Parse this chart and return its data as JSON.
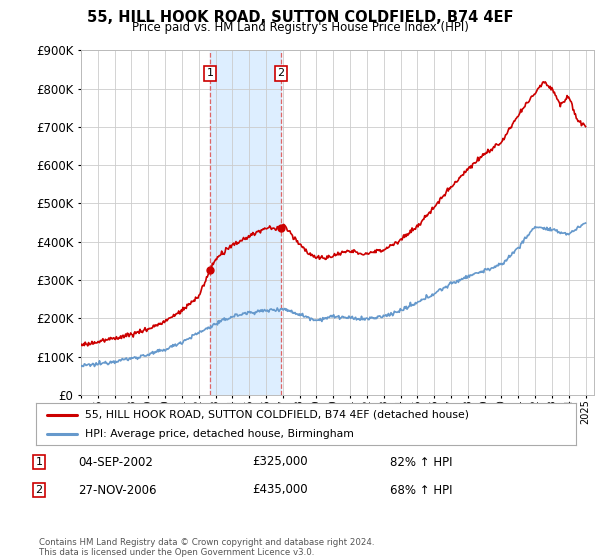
{
  "title": "55, HILL HOOK ROAD, SUTTON COLDFIELD, B74 4EF",
  "subtitle": "Price paid vs. HM Land Registry's House Price Index (HPI)",
  "background_color": "#ffffff",
  "grid_color": "#cccccc",
  "sale1_date": "04-SEP-2002",
  "sale1_price": 325000,
  "sale1_hpi": "82% ↑ HPI",
  "sale2_date": "27-NOV-2006",
  "sale2_price": 435000,
  "sale2_hpi": "68% ↑ HPI",
  "legend_label_red": "55, HILL HOOK ROAD, SUTTON COLDFIELD, B74 4EF (detached house)",
  "legend_label_blue": "HPI: Average price, detached house, Birmingham",
  "footnote": "Contains HM Land Registry data © Crown copyright and database right 2024.\nThis data is licensed under the Open Government Licence v3.0.",
  "red_color": "#cc0000",
  "blue_color": "#6699cc",
  "shade_color": "#ddeeff",
  "sale1_vline_x": 2002.67,
  "sale2_vline_x": 2006.9,
  "ylim_max": 900000,
  "xlim_start": 1995.0,
  "xlim_end": 2025.5,
  "hpi_data": [
    [
      1995.0,
      75000
    ],
    [
      1996.0,
      80000
    ],
    [
      1997.0,
      88000
    ],
    [
      1998.0,
      95000
    ],
    [
      1999.0,
      105000
    ],
    [
      2000.0,
      118000
    ],
    [
      2001.0,
      138000
    ],
    [
      2002.0,
      162000
    ],
    [
      2003.0,
      185000
    ],
    [
      2004.0,
      205000
    ],
    [
      2005.0,
      215000
    ],
    [
      2006.0,
      220000
    ],
    [
      2007.0,
      225000
    ],
    [
      2008.0,
      210000
    ],
    [
      2009.0,
      195000
    ],
    [
      2010.0,
      205000
    ],
    [
      2011.0,
      200000
    ],
    [
      2012.0,
      198000
    ],
    [
      2013.0,
      205000
    ],
    [
      2014.0,
      220000
    ],
    [
      2015.0,
      240000
    ],
    [
      2016.0,
      265000
    ],
    [
      2017.0,
      290000
    ],
    [
      2018.0,
      310000
    ],
    [
      2019.0,
      325000
    ],
    [
      2020.0,
      340000
    ],
    [
      2021.0,
      385000
    ],
    [
      2022.0,
      440000
    ],
    [
      2023.0,
      430000
    ],
    [
      2024.0,
      420000
    ],
    [
      2025.0,
      450000
    ]
  ],
  "red_data": [
    [
      1995.0,
      130000
    ],
    [
      1996.0,
      138000
    ],
    [
      1997.0,
      148000
    ],
    [
      1998.0,
      158000
    ],
    [
      1999.0,
      172000
    ],
    [
      2000.0,
      192000
    ],
    [
      2001.0,
      220000
    ],
    [
      2002.0,
      258000
    ],
    [
      2002.67,
      325000
    ],
    [
      2003.0,
      355000
    ],
    [
      2004.0,
      390000
    ],
    [
      2005.0,
      415000
    ],
    [
      2006.0,
      435000
    ],
    [
      2006.9,
      435000
    ],
    [
      2007.0,
      445000
    ],
    [
      2007.5,
      420000
    ],
    [
      2008.0,
      395000
    ],
    [
      2008.5,
      370000
    ],
    [
      2009.0,
      360000
    ],
    [
      2009.5,
      355000
    ],
    [
      2010.0,
      365000
    ],
    [
      2011.0,
      375000
    ],
    [
      2012.0,
      368000
    ],
    [
      2013.0,
      380000
    ],
    [
      2014.0,
      405000
    ],
    [
      2015.0,
      440000
    ],
    [
      2016.0,
      490000
    ],
    [
      2017.0,
      545000
    ],
    [
      2018.0,
      590000
    ],
    [
      2019.0,
      630000
    ],
    [
      2020.0,
      660000
    ],
    [
      2021.0,
      730000
    ],
    [
      2022.0,
      790000
    ],
    [
      2022.5,
      820000
    ],
    [
      2023.0,
      800000
    ],
    [
      2023.5,
      760000
    ],
    [
      2024.0,
      780000
    ],
    [
      2024.5,
      720000
    ],
    [
      2025.0,
      700000
    ]
  ]
}
